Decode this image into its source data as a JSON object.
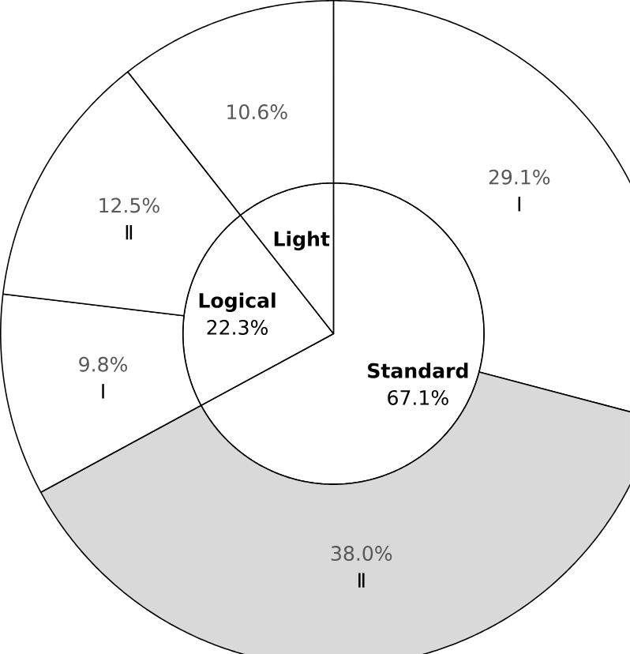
{
  "chart_data": [
    {
      "type": "pie",
      "categories": [
        "Standard",
        "Logical",
        "Light"
      ],
      "values": [
        67.1,
        22.3,
        10.6
      ],
      "value_labels": [
        "67.1%",
        "22.3%",
        null
      ],
      "colors": [
        "#ffffff",
        "#ffffff",
        "#ffffff"
      ]
    },
    {
      "type": "donut",
      "categories": [
        "Ⅰ",
        "Ⅱ",
        "Ⅰ",
        "Ⅱ",
        null
      ],
      "values": [
        29.1,
        38.0,
        9.8,
        12.5,
        10.6
      ],
      "value_labels": [
        "29.1%",
        "38.0%",
        "9.8%",
        "12.5%",
        "10.6%"
      ],
      "colors": [
        "#ffffff",
        "#d9d9d9",
        "#ffffff",
        "#ffffff",
        "#ffffff"
      ]
    }
  ]
}
